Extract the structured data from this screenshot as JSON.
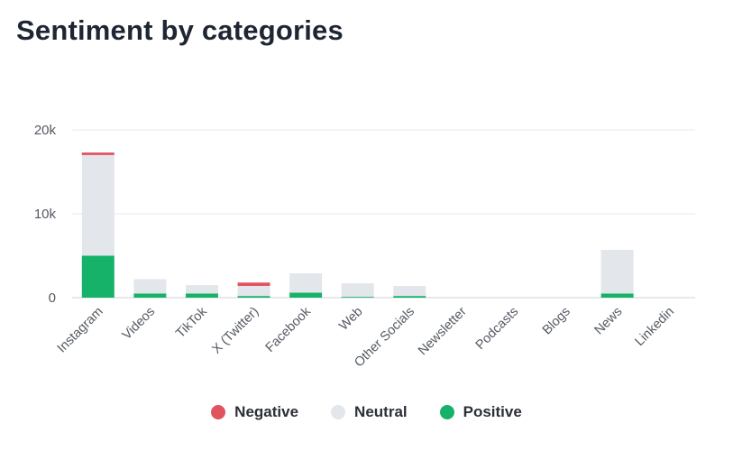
{
  "title": "Sentiment by categories",
  "colors": {
    "negative": "#e05460",
    "neutral": "#e3e6ea",
    "positive": "#17b26a",
    "grid": "#e6e8eb"
  },
  "chart_data": {
    "type": "bar",
    "stacked": true,
    "title": "Sentiment by categories",
    "xlabel": "",
    "ylabel": "",
    "ylim": [
      0,
      20000
    ],
    "yticks": [
      0,
      10000,
      20000
    ],
    "ytick_labels": [
      "0",
      "10k",
      "20k"
    ],
    "grid": true,
    "legend_position": "bottom",
    "categories": [
      "Instagram",
      "Videos",
      "TikTok",
      "X (Twitter)",
      "Facebook",
      "Web",
      "Other Socials",
      "Newsletter",
      "Podcasts",
      "Blogs",
      "News",
      "Linkedin"
    ],
    "series": [
      {
        "name": "Positive",
        "color": "#17b26a",
        "values": [
          5000,
          500,
          500,
          200,
          600,
          100,
          200,
          0,
          0,
          0,
          500,
          0
        ]
      },
      {
        "name": "Neutral",
        "color": "#e3e6ea",
        "values": [
          12000,
          1700,
          1000,
          1200,
          2300,
          1600,
          1200,
          100,
          100,
          100,
          5200,
          100
        ]
      },
      {
        "name": "Negative",
        "color": "#e05460",
        "values": [
          300,
          0,
          0,
          400,
          0,
          0,
          0,
          0,
          0,
          0,
          0,
          0
        ]
      }
    ]
  },
  "legend": [
    {
      "label": "Negative",
      "color": "#e05460"
    },
    {
      "label": "Neutral",
      "color": "#e3e6ea"
    },
    {
      "label": "Positive",
      "color": "#17b26a"
    }
  ]
}
